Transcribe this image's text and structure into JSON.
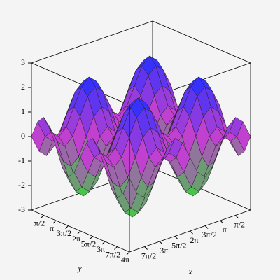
{
  "chart_data": {
    "type": "surface",
    "x": [
      0,
      0.785,
      1.571,
      2.356,
      3.142,
      3.927,
      4.712,
      5.498,
      6.283,
      7.069,
      7.854,
      8.639,
      9.425,
      10.21,
      10.996,
      11.781,
      12.566
    ],
    "y": [
      0,
      0.785,
      1.571,
      2.356,
      3.142,
      3.927,
      4.712,
      5.498,
      6.283,
      7.069,
      7.854,
      8.639,
      9.425,
      10.21,
      10.996,
      11.781,
      12.566
    ],
    "z": [
      [
        0,
        0.71,
        1,
        0.71,
        0,
        -0.71,
        -1,
        -0.71,
        0,
        0.71,
        1,
        0.71,
        0,
        -0.71,
        -1,
        -0.71,
        0
      ],
      [
        0.71,
        1.42,
        1.71,
        1.42,
        0.71,
        0,
        -0.29,
        0,
        0.71,
        1.42,
        1.71,
        1.42,
        0.71,
        0,
        -0.29,
        0,
        0.71
      ],
      [
        1,
        1.71,
        2,
        1.71,
        1,
        0.29,
        0,
        0.29,
        1,
        1.71,
        2,
        1.71,
        1,
        0.29,
        0,
        0.29,
        1
      ],
      [
        0.71,
        1.42,
        1.71,
        1.42,
        0.71,
        0,
        -0.29,
        0,
        0.71,
        1.42,
        1.71,
        1.42,
        0.71,
        0,
        -0.29,
        0,
        0.71
      ],
      [
        0,
        0.71,
        1,
        0.71,
        0,
        -0.71,
        -1,
        -0.71,
        0,
        0.71,
        1,
        0.71,
        0,
        -0.71,
        -1,
        -0.71,
        0
      ],
      [
        -0.71,
        0,
        0.29,
        0,
        -0.71,
        -1.42,
        -1.71,
        -1.42,
        -0.71,
        0,
        0.29,
        0,
        -0.71,
        -1.42,
        -1.71,
        -1.42,
        -0.71
      ],
      [
        -1,
        -0.29,
        0,
        -0.29,
        -1,
        -1.71,
        -2,
        -1.71,
        -1,
        -0.29,
        0,
        -0.29,
        -1,
        -1.71,
        -2,
        -1.71,
        -1
      ],
      [
        -0.71,
        0,
        0.29,
        0,
        -0.71,
        -1.42,
        -1.71,
        -1.42,
        -0.71,
        0,
        0.29,
        0,
        -0.71,
        -1.42,
        -1.71,
        -1.42,
        -0.71
      ],
      [
        0,
        0.71,
        1,
        0.71,
        0,
        -0.71,
        -1,
        -0.71,
        0,
        0.71,
        1,
        0.71,
        0,
        -0.71,
        -1,
        -0.71,
        0
      ],
      [
        0.71,
        1.42,
        1.71,
        1.42,
        0.71,
        0,
        -0.29,
        0,
        0.71,
        1.42,
        1.71,
        1.42,
        0.71,
        0,
        -0.29,
        0,
        0.71
      ],
      [
        1,
        1.71,
        2,
        1.71,
        1,
        0.29,
        0,
        0.29,
        1,
        1.71,
        2,
        1.71,
        1,
        0.29,
        0,
        0.29,
        1
      ],
      [
        0.71,
        1.42,
        1.71,
        1.42,
        0.71,
        0,
        -0.29,
        0,
        0.71,
        1.42,
        1.71,
        1.42,
        0.71,
        0,
        -0.29,
        0,
        0.71
      ],
      [
        0,
        0.71,
        1,
        0.71,
        0,
        -0.71,
        -1,
        -0.71,
        0,
        0.71,
        1,
        0.71,
        0,
        -0.71,
        -1,
        -0.71,
        0
      ],
      [
        -0.71,
        0,
        0.29,
        0,
        -0.71,
        -1.42,
        -1.71,
        -1.42,
        -0.71,
        0,
        0.29,
        0,
        -0.71,
        -1.42,
        -1.71,
        -1.42,
        -0.71
      ],
      [
        -1,
        -0.29,
        0,
        -0.29,
        -1,
        -1.71,
        -2,
        -1.71,
        -1,
        -0.29,
        0,
        -0.29,
        -1,
        -1.71,
        -2,
        -1.71,
        -1
      ],
      [
        -0.71,
        0,
        0.29,
        0,
        -0.71,
        -1.42,
        -1.71,
        -1.42,
        -0.71,
        0,
        0.29,
        0,
        -0.71,
        -1.42,
        -1.71,
        -1.42,
        -0.71
      ],
      [
        0,
        0.71,
        1,
        0.71,
        0,
        -0.71,
        -1,
        -0.71,
        0,
        0.71,
        1,
        0.71,
        0,
        -0.71,
        -1,
        -0.71,
        0
      ]
    ],
    "xlim": [
      0,
      12.566
    ],
    "ylim": [
      0,
      12.566
    ],
    "zlim": [
      -3,
      3
    ],
    "xticks": [
      {
        "value": 1.571,
        "label": "π/2"
      },
      {
        "value": 3.142,
        "label": "π"
      },
      {
        "value": 4.712,
        "label": "3π/2"
      },
      {
        "value": 6.283,
        "label": "2π"
      },
      {
        "value": 7.854,
        "label": "5π/2"
      },
      {
        "value": 9.425,
        "label": "3π"
      },
      {
        "value": 10.996,
        "label": "7π/2"
      }
    ],
    "yticks": [
      {
        "value": 1.571,
        "label": "π/2"
      },
      {
        "value": 3.142,
        "label": "π"
      },
      {
        "value": 4.712,
        "label": "3π/2"
      },
      {
        "value": 6.283,
        "label": "2π"
      },
      {
        "value": 7.854,
        "label": "5π/2"
      },
      {
        "value": 9.425,
        "label": "3π"
      },
      {
        "value": 10.996,
        "label": "7π/2"
      },
      {
        "value": 12.566,
        "label": "4π"
      }
    ],
    "zticks": [
      -3,
      -2,
      -1,
      0,
      1,
      2,
      3
    ],
    "xlabel": "x",
    "ylabel": "y",
    "color_low": "#30e030",
    "color_mid": "#c040d0",
    "color_high": "#3030ff"
  }
}
